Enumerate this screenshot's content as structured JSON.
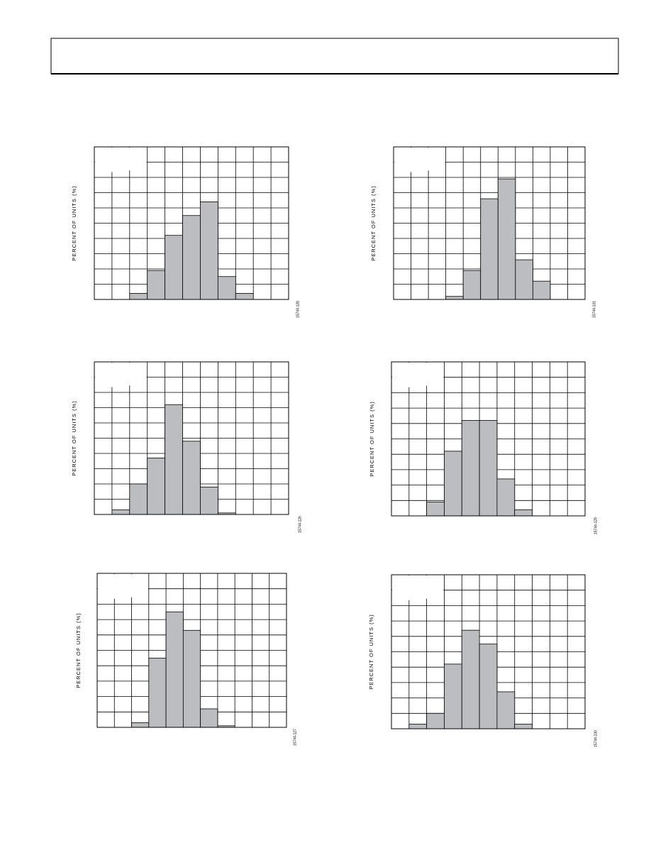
{
  "chart_data": [
    {
      "type": "bar",
      "y_label": "PERCENT OF UNITS (%)",
      "figure_id": "15744-128",
      "categories": [
        null,
        null,
        null,
        null,
        null,
        null,
        null,
        null,
        null,
        null,
        null
      ],
      "values": [
        0,
        0,
        0.4,
        1.9,
        4.2,
        5.5,
        6.4,
        1.5,
        0.4,
        0,
        0
      ],
      "color": "#bcbdc0",
      "ylim": [
        0,
        10
      ],
      "grid": true
    },
    {
      "type": "bar",
      "y_label": "PERCENT OF UNITS (%)",
      "figure_id": "15744-131",
      "categories": [
        null,
        null,
        null,
        null,
        null,
        null,
        null,
        null,
        null,
        null,
        null
      ],
      "values": [
        0,
        0,
        0,
        0.2,
        1.9,
        6.6,
        7.9,
        2.6,
        1.2,
        0,
        0
      ],
      "color": "#bcbdc0",
      "ylim": [
        0,
        10
      ],
      "grid": true
    },
    {
      "type": "bar",
      "y_label": "PERCENT OF UNITS (%)",
      "figure_id": "15744-126",
      "categories": [
        null,
        null,
        null,
        null,
        null,
        null,
        null,
        null,
        null,
        null,
        null
      ],
      "values": [
        0,
        0.3,
        2.0,
        3.7,
        7.2,
        4.8,
        1.8,
        0.1,
        0,
        0,
        0
      ],
      "color": "#bcbdc0",
      "ylim": [
        0,
        10
      ],
      "grid": true
    },
    {
      "type": "bar",
      "y_label": "PERCENT OF UNITS (%)",
      "figure_id": "15744-129",
      "categories": [
        null,
        null,
        null,
        null,
        null,
        null,
        null,
        null,
        null,
        null,
        null
      ],
      "values": [
        0,
        0,
        0.9,
        4.2,
        6.2,
        6.2,
        2.4,
        0.4,
        0,
        0,
        0
      ],
      "color": "#bcbdc0",
      "ylim": [
        0,
        10
      ],
      "grid": true
    },
    {
      "type": "bar",
      "y_label": "PERCENT OF UNITS (%)",
      "figure_id": "15744-127",
      "categories": [
        null,
        null,
        null,
        null,
        null,
        null,
        null,
        null,
        null,
        null,
        null
      ],
      "values": [
        0,
        0,
        0.3,
        4.5,
        7.5,
        6.3,
        1.2,
        0.1,
        0,
        0,
        0
      ],
      "color": "#bcbdc0",
      "ylim": [
        0,
        10
      ],
      "grid": true
    },
    {
      "type": "bar",
      "y_label": "PERCENT OF UNITS (%)",
      "figure_id": "15744-130",
      "categories": [
        null,
        null,
        null,
        null,
        null,
        null,
        null,
        null,
        null,
        null,
        null
      ],
      "values": [
        0,
        0.3,
        1.0,
        4.2,
        6.4,
        5.5,
        2.4,
        0.3,
        0,
        0,
        0
      ],
      "color": "#bcbdc0",
      "ylim": [
        0,
        10
      ],
      "grid": true
    }
  ]
}
